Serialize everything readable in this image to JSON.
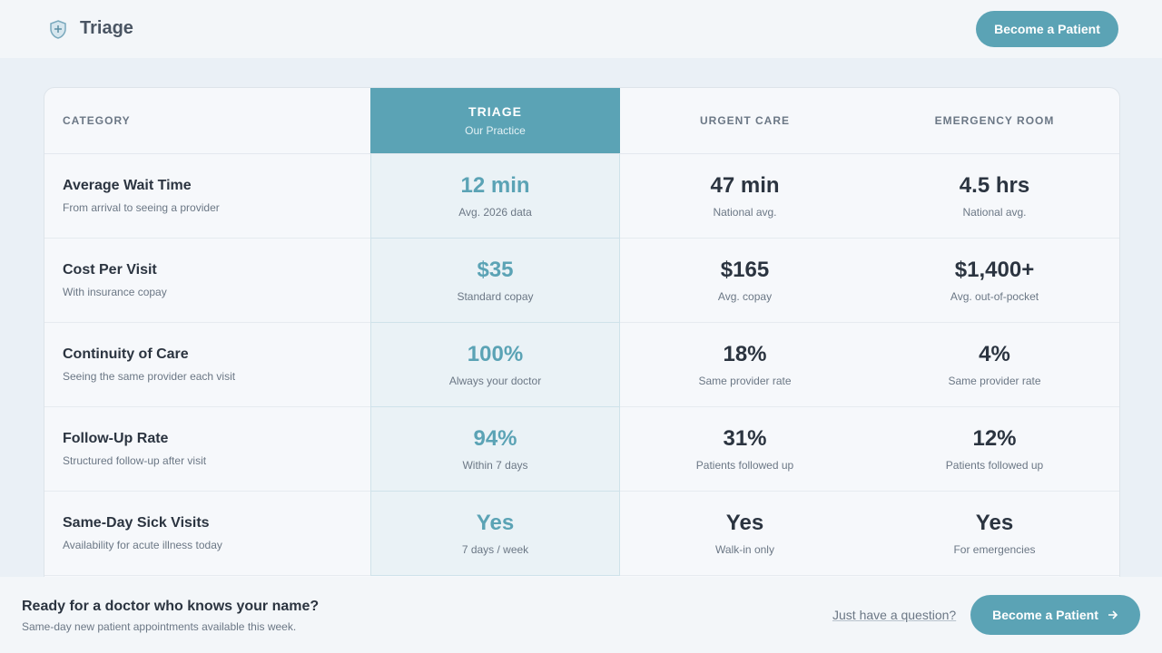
{
  "header": {
    "brand": "Triage",
    "cta": "Become a Patient"
  },
  "table": {
    "columns": [
      {
        "title": "CATEGORY"
      },
      {
        "title": "TRIAGE",
        "subtitle": "Our Practice"
      },
      {
        "title": "URGENT CARE"
      },
      {
        "title": "EMERGENCY ROOM"
      }
    ],
    "rows": [
      {
        "label": "Average Wait Time",
        "sub": "From arrival to seeing a provider",
        "cells": [
          {
            "value": "12 min",
            "note": "Avg. 2026 data"
          },
          {
            "value": "47 min",
            "note": "National avg."
          },
          {
            "value": "4.5 hrs",
            "note": "National avg."
          }
        ]
      },
      {
        "label": "Cost Per Visit",
        "sub": "With insurance copay",
        "cells": [
          {
            "value": "$35",
            "note": "Standard copay"
          },
          {
            "value": "$165",
            "note": "Avg. copay"
          },
          {
            "value": "$1,400+",
            "note": "Avg. out-of-pocket"
          }
        ]
      },
      {
        "label": "Continuity of Care",
        "sub": "Seeing the same provider each visit",
        "cells": [
          {
            "value": "100%",
            "note": "Always your doctor"
          },
          {
            "value": "18%",
            "note": "Same provider rate"
          },
          {
            "value": "4%",
            "note": "Same provider rate"
          }
        ]
      },
      {
        "label": "Follow-Up Rate",
        "sub": "Structured follow-up after visit",
        "cells": [
          {
            "value": "94%",
            "note": "Within 7 days"
          },
          {
            "value": "31%",
            "note": "Patients followed up"
          },
          {
            "value": "12%",
            "note": "Patients followed up"
          }
        ]
      },
      {
        "label": "Same-Day Sick Visits",
        "sub": "Availability for acute illness today",
        "cells": [
          {
            "value": "Yes",
            "note": "7 days / week"
          },
          {
            "value": "Yes",
            "note": "Walk-in only"
          },
          {
            "value": "Yes",
            "note": "For emergencies"
          }
        ]
      }
    ]
  },
  "footer": {
    "title": "Ready for a doctor who knows your name?",
    "subtitle": "Same-day new patient appointments available this week.",
    "link": "Just have a question?",
    "cta": "Become a Patient"
  }
}
